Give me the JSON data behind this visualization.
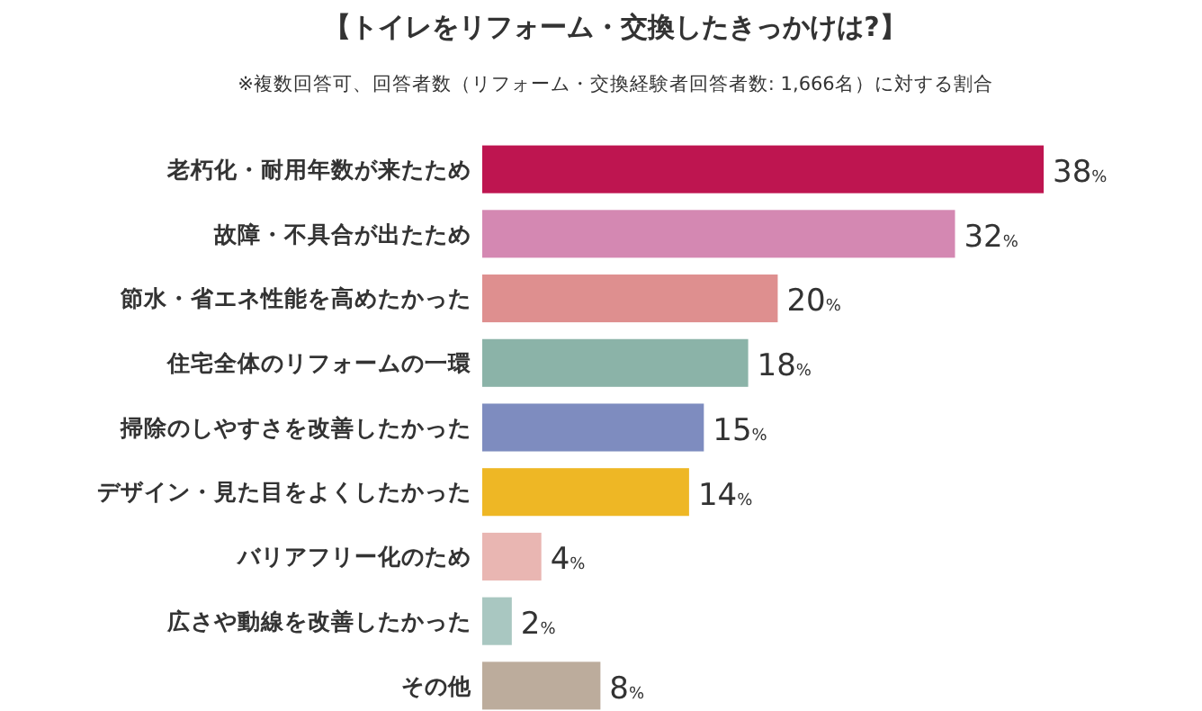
{
  "chart_data": {
    "type": "bar",
    "orientation": "horizontal",
    "title": "【トイレをリフォーム・交換したきっかけは?】",
    "subtitle": "※複数回答可、回答者数（リフォーム・交換経験者回答者数: 1,666名）に対する割合",
    "categories": [
      "老朽化・耐用年数が来たため",
      "故障・不具合が出たため",
      "節水・省エネ性能を高めたかった",
      "住宅全体のリフォームの一環",
      "掃除のしやすさを改善したかった",
      "デザイン・見た目をよくしたかった",
      "バリアフリー化のため",
      "広さや動線を改善したかった",
      "その他"
    ],
    "values": [
      38,
      32,
      20,
      18,
      15,
      14,
      4,
      2,
      8
    ],
    "colors": [
      "#be1550",
      "#d488b2",
      "#de8f8f",
      "#8bb3a8",
      "#7e8cbf",
      "#eeb725",
      "#e9b6b2",
      "#a9c7c1",
      "#bcac9c"
    ],
    "value_labels": [
      "38%",
      "32%",
      "20%",
      "18%",
      "15%",
      "14%",
      "4%",
      "2%",
      "8%"
    ]
  }
}
